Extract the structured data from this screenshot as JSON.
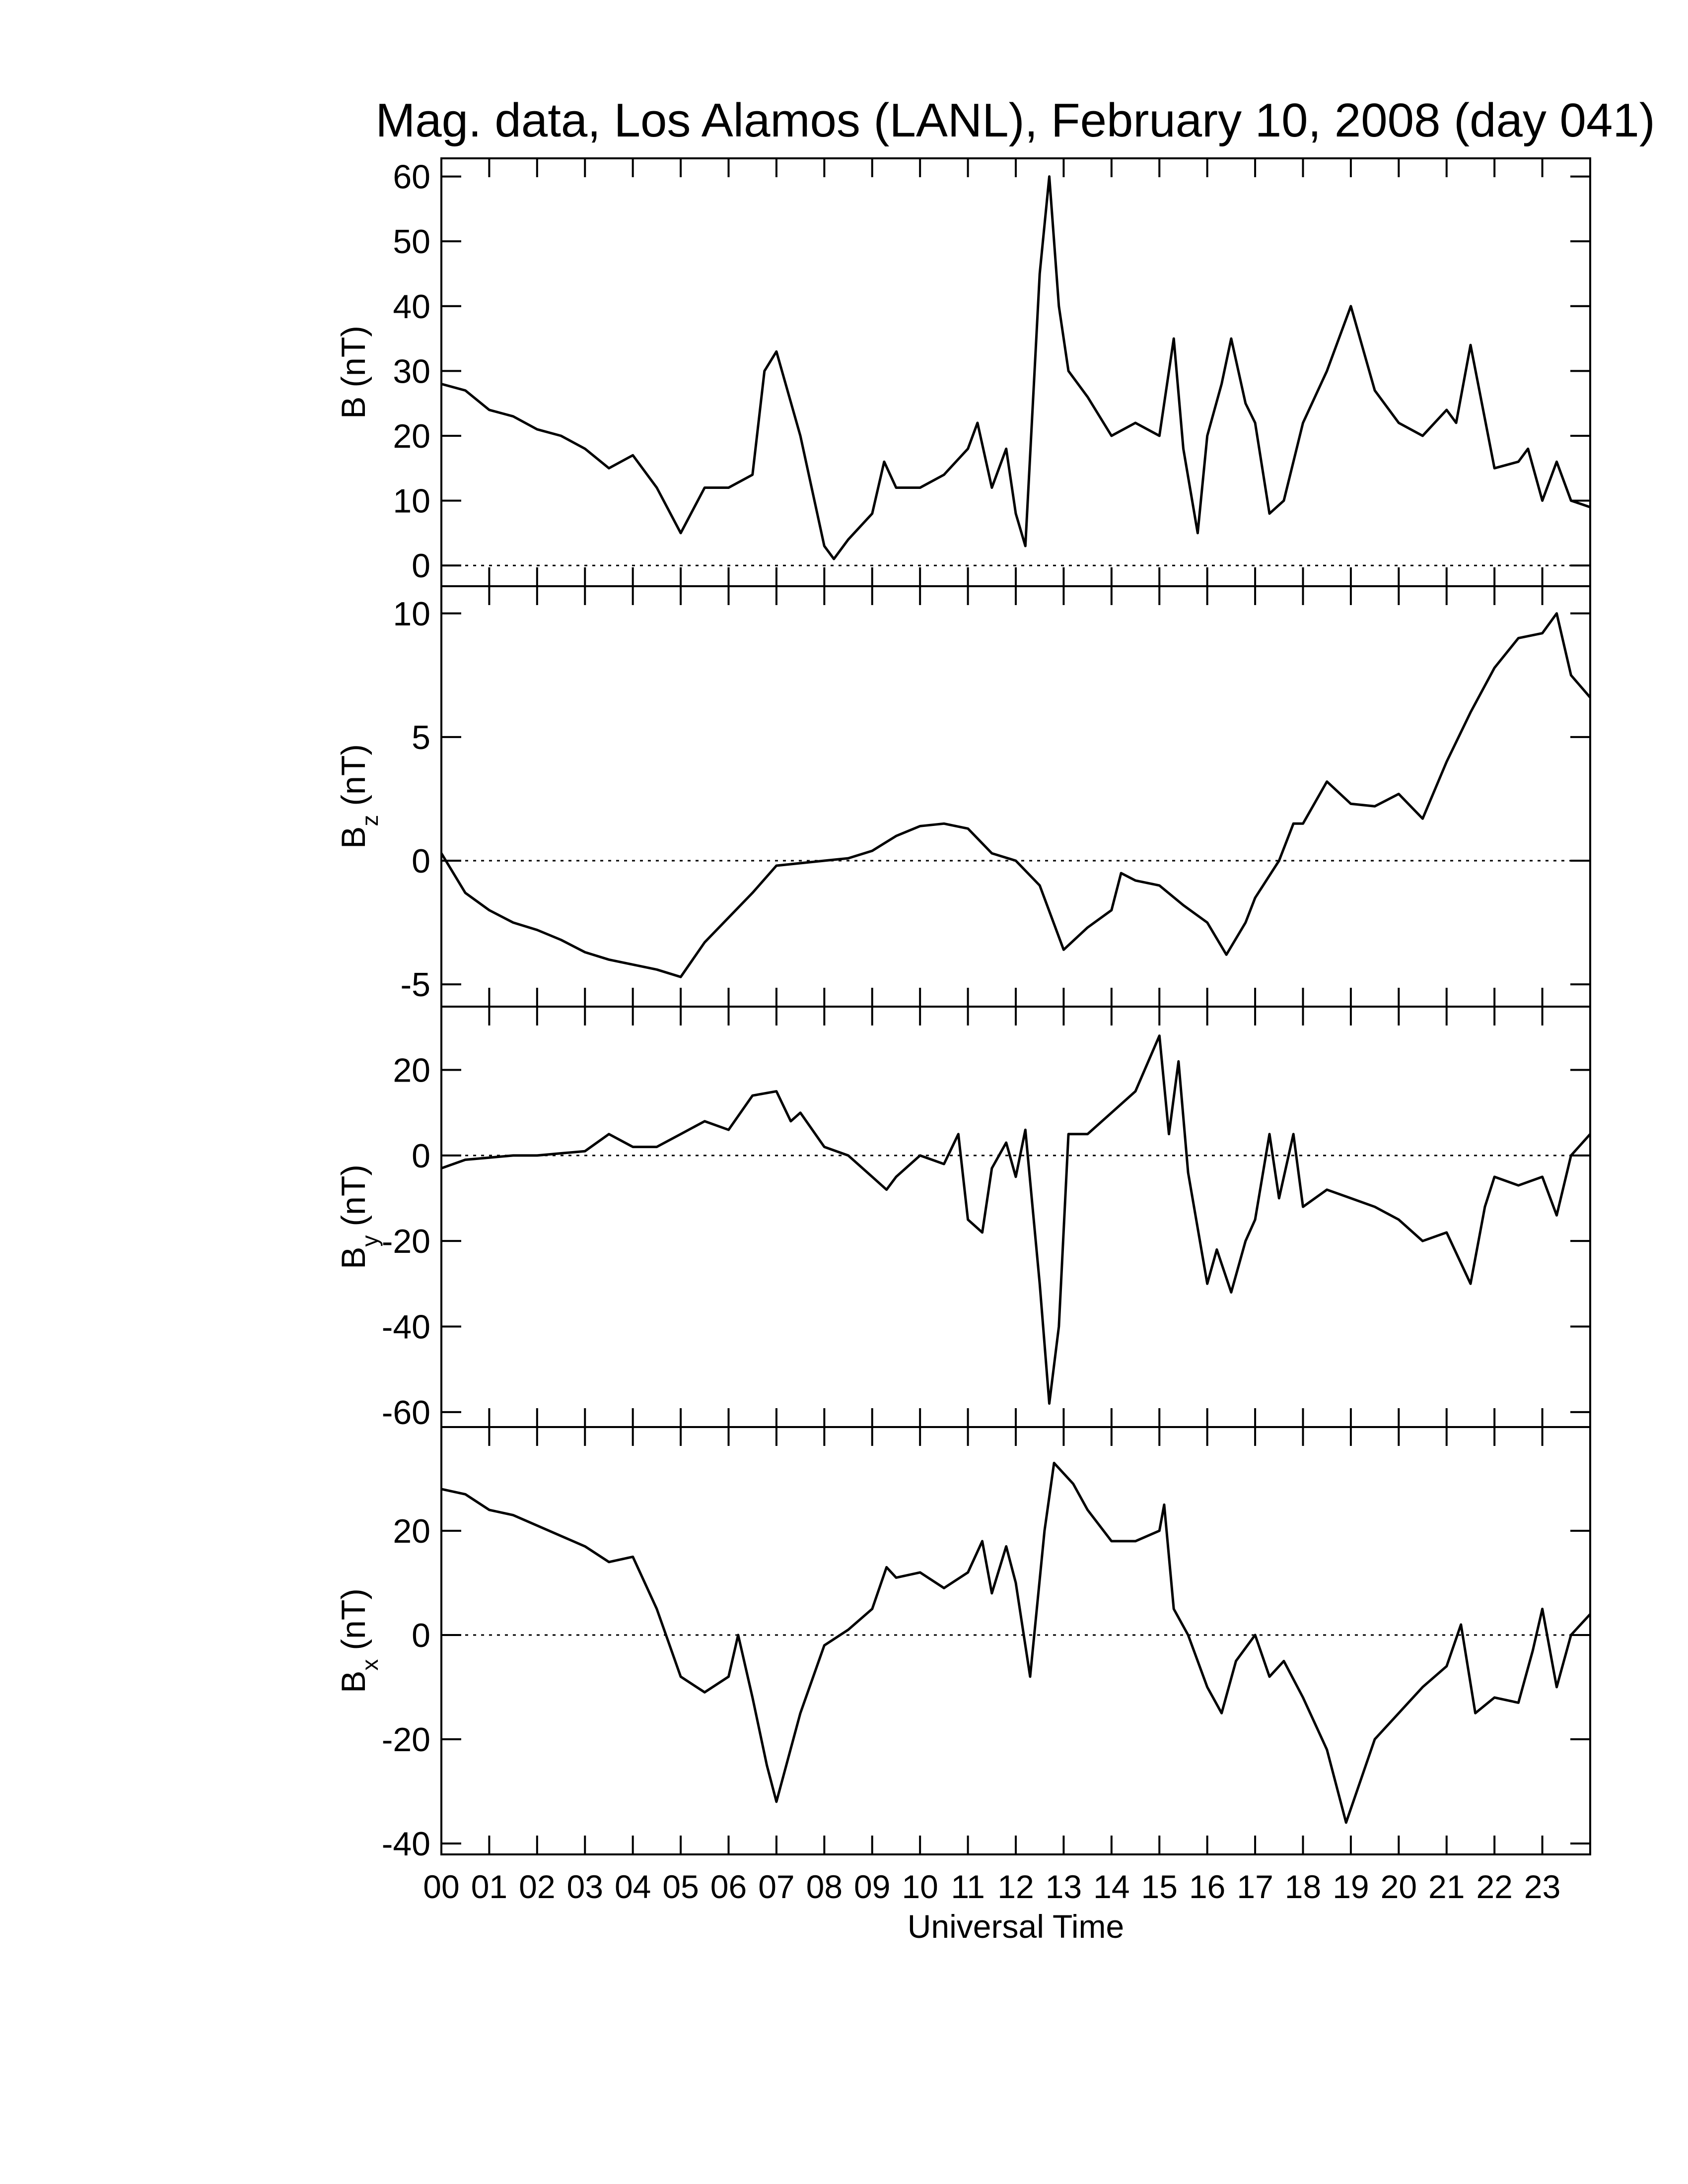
{
  "chart_data": [
    {
      "type": "line",
      "title": "Mag. data, Los Alamos (LANL), February 10, 2008 (day 041)",
      "ylabel": "B",
      "ylabel_unit": "(nT)",
      "xlim": [
        0,
        24
      ],
      "ylim": [
        -3.2,
        62.8
      ],
      "yticks": [
        0,
        10,
        20,
        30,
        40,
        50,
        60
      ],
      "hline": 0,
      "color": "#000000",
      "x": [
        0,
        0.5,
        1,
        1.5,
        2,
        2.5,
        3,
        3.5,
        4,
        4.5,
        5,
        5.5,
        6,
        6.5,
        6.75,
        7,
        7.5,
        8,
        8.2,
        8.5,
        9,
        9.25,
        9.5,
        10,
        10.5,
        11,
        11.2,
        11.5,
        11.8,
        12,
        12.2,
        12.5,
        12.7,
        12.9,
        13.1,
        13.5,
        14,
        14.5,
        15,
        15.3,
        15.5,
        15.8,
        16,
        16.3,
        16.5,
        16.8,
        17,
        17.3,
        17.6,
        18,
        18.5,
        19,
        19.5,
        20,
        20.5,
        21,
        21.2,
        21.5,
        22,
        22.5,
        22.7,
        23,
        23.3,
        23.6,
        24
      ],
      "values": [
        28,
        27,
        24,
        23,
        21,
        20,
        18,
        15,
        17,
        12,
        5,
        12,
        12,
        14,
        30,
        33,
        20,
        3,
        1,
        4,
        8,
        16,
        12,
        12,
        14,
        18,
        22,
        12,
        18,
        8,
        3,
        45,
        60,
        40,
        30,
        26,
        20,
        22,
        20,
        35,
        18,
        5,
        20,
        28,
        35,
        25,
        22,
        8,
        10,
        22,
        30,
        40,
        27,
        22,
        20,
        24,
        22,
        34,
        15,
        16,
        18,
        10,
        16,
        10,
        9
      ]
    },
    {
      "type": "line",
      "ylabel": "B",
      "ylabel_sub": "z",
      "ylabel_unit": "(nT)",
      "xlim": [
        0,
        24
      ],
      "ylim": [
        -5.9,
        11.1
      ],
      "yticks": [
        -5,
        0,
        5,
        10
      ],
      "hline": 0,
      "color": "#000000",
      "x": [
        0,
        0.5,
        1,
        1.5,
        2,
        2.5,
        3,
        3.5,
        4,
        4.5,
        5,
        5.5,
        6,
        6.5,
        7,
        7.5,
        8,
        8.5,
        9,
        9.5,
        10,
        10.5,
        11,
        11.5,
        12,
        12.5,
        13,
        13.5,
        14,
        14.2,
        14.5,
        15,
        15.5,
        16,
        16.4,
        16.8,
        17,
        17.5,
        17.8,
        18,
        18.5,
        19,
        19.5,
        20,
        20.5,
        21,
        21.5,
        22,
        22.5,
        23,
        23.3,
        23.6,
        24
      ],
      "values": [
        0.3,
        -1.3,
        -2,
        -2.5,
        -2.8,
        -3.2,
        -3.7,
        -4,
        -4.2,
        -4.4,
        -4.7,
        -3.3,
        -2.3,
        -1.3,
        -0.2,
        -0.1,
        0,
        0.1,
        0.4,
        1,
        1.4,
        1.5,
        1.3,
        0.3,
        0,
        -1,
        -3.6,
        -2.7,
        -2,
        -0.5,
        -0.8,
        -1,
        -1.8,
        -2.5,
        -3.8,
        -2.5,
        -1.5,
        0,
        1.5,
        1.5,
        3.2,
        2.3,
        2.2,
        2.7,
        1.7,
        4,
        6,
        7.8,
        9,
        9.2,
        10,
        7.5,
        6.6
      ]
    },
    {
      "type": "line",
      "ylabel": "B",
      "ylabel_sub": "y",
      "ylabel_unit": "(nT)",
      "xlim": [
        0,
        24
      ],
      "ylim": [
        -63.5,
        34.8
      ],
      "yticks": [
        -60,
        -40,
        -20,
        0,
        20
      ],
      "hline": 0,
      "color": "#000000",
      "x": [
        0,
        0.5,
        1,
        1.5,
        2,
        2.5,
        3,
        3.5,
        4,
        4.5,
        5,
        5.5,
        6,
        6.5,
        7,
        7.3,
        7.5,
        8,
        8.5,
        9,
        9.3,
        9.5,
        10,
        10.5,
        10.8,
        11,
        11.3,
        11.5,
        11.8,
        12,
        12.2,
        12.5,
        12.7,
        12.9,
        13.1,
        13.5,
        14,
        14.5,
        15,
        15.2,
        15.4,
        15.6,
        16,
        16.2,
        16.5,
        16.8,
        17,
        17.3,
        17.5,
        17.8,
        18,
        18.5,
        19,
        19.5,
        20,
        20.5,
        21,
        21.5,
        21.8,
        22,
        22.5,
        23,
        23.3,
        23.6,
        24
      ],
      "values": [
        -3,
        -1,
        -0.5,
        0,
        0,
        0.5,
        1,
        5,
        2,
        2,
        5,
        8,
        6,
        14,
        15,
        8,
        10,
        2,
        0,
        -5,
        -8,
        -5,
        0,
        -2,
        5,
        -15,
        -18,
        -3,
        3,
        -5,
        6,
        -30,
        -58,
        -40,
        5,
        5,
        10,
        15,
        28,
        5,
        22,
        -4,
        -30,
        -22,
        -32,
        -20,
        -15,
        5,
        -10,
        5,
        -12,
        -8,
        -10,
        -12,
        -15,
        -20,
        -18,
        -30,
        -12,
        -5,
        -7,
        -5,
        -14,
        0,
        5
      ]
    },
    {
      "type": "line",
      "ylabel": "B",
      "ylabel_sub": "x",
      "ylabel_unit": "(nT)",
      "xlabel": "Universal Time",
      "xlim": [
        0,
        24
      ],
      "ylim": [
        -42.1,
        39.9
      ],
      "yticks": [
        -40,
        -20,
        0,
        20
      ],
      "hline": 0,
      "color": "#000000",
      "xticks": [
        {
          "value": 0,
          "label": "00"
        },
        {
          "value": 1,
          "label": "01"
        },
        {
          "value": 2,
          "label": "02"
        },
        {
          "value": 3,
          "label": "03"
        },
        {
          "value": 4,
          "label": "04"
        },
        {
          "value": 5,
          "label": "05"
        },
        {
          "value": 6,
          "label": "06"
        },
        {
          "value": 7,
          "label": "07"
        },
        {
          "value": 8,
          "label": "08"
        },
        {
          "value": 9,
          "label": "09"
        },
        10,
        11,
        12,
        13,
        14,
        15,
        16,
        17,
        18,
        19,
        20,
        21,
        22,
        23
      ],
      "x": [
        0,
        0.5,
        1,
        1.5,
        2,
        2.5,
        3,
        3.5,
        4,
        4.5,
        5,
        5.5,
        6,
        6.2,
        6.5,
        6.8,
        7,
        7.5,
        8,
        8.5,
        9,
        9.3,
        9.5,
        10,
        10.5,
        11,
        11.3,
        11.5,
        11.8,
        12,
        12.3,
        12.6,
        12.8,
        13.2,
        13.5,
        14,
        14.5,
        15,
        15.1,
        15.3,
        15.6,
        16,
        16.3,
        16.6,
        17,
        17.3,
        17.6,
        18,
        18.5,
        18.9,
        19.2,
        19.5,
        20,
        20.5,
        21,
        21.3,
        21.6,
        22,
        22.5,
        22.8,
        23,
        23.3,
        23.6,
        24
      ],
      "values": [
        28,
        27,
        24,
        23,
        21,
        19,
        17,
        14,
        15,
        5,
        -8,
        -11,
        -8,
        0,
        -12,
        -25,
        -32,
        -15,
        -2,
        1,
        5,
        13,
        11,
        12,
        9,
        12,
        18,
        8,
        17,
        10,
        -8,
        20,
        33,
        29,
        24,
        18,
        18,
        20,
        25,
        5,
        0,
        -10,
        -15,
        -5,
        0,
        -8,
        -5,
        -12,
        -22,
        -36,
        -28,
        -20,
        -15,
        -10,
        -6,
        2,
        -15,
        -12,
        -13,
        -3,
        5,
        -10,
        0,
        4
      ]
    }
  ]
}
